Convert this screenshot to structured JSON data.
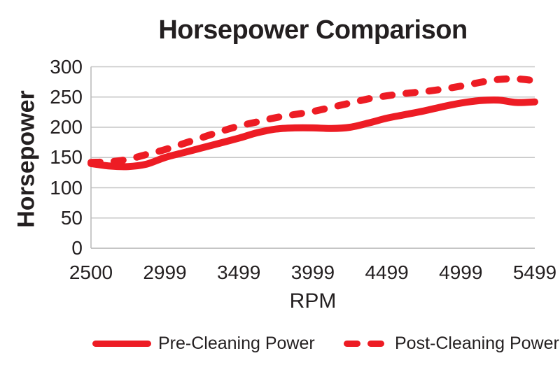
{
  "chart_data": {
    "type": "line",
    "title": "Horsepower Comparison",
    "xlabel": "RPM",
    "ylabel": "Horsepower",
    "xlim": [
      2500,
      5499
    ],
    "ylim": [
      0,
      300
    ],
    "grid": "horizontal",
    "legend_position": "bottom",
    "colors": {
      "series": "#ED1C24",
      "grid": "#C6C6C6",
      "axis": "#BDBDBD",
      "text": "#231F20"
    },
    "y_ticks": [
      0,
      50,
      100,
      150,
      200,
      250,
      300
    ],
    "x_tick_labels": [
      "2500",
      "2999",
      "3499",
      "3999",
      "4499",
      "4999",
      "5499"
    ],
    "x_tick_values": [
      2500,
      2999,
      3499,
      3999,
      4499,
      4999,
      5499
    ],
    "x": [
      2500,
      2625,
      2750,
      2875,
      2999,
      3125,
      3250,
      3375,
      3499,
      3625,
      3750,
      3875,
      3999,
      4125,
      4250,
      4375,
      4499,
      4625,
      4750,
      4875,
      4999,
      5125,
      5250,
      5375,
      5499
    ],
    "series": [
      {
        "name": "Pre-Cleaning Power",
        "style": "solid",
        "values": [
          140,
          136,
          135,
          139,
          150,
          158,
          166,
          174,
          182,
          191,
          197,
          199,
          199,
          198,
          200,
          207,
          215,
          221,
          227,
          234,
          240,
          244,
          245,
          241,
          242
        ]
      },
      {
        "name": "Post-Cleaning Power",
        "style": "dashed",
        "values": [
          142,
          143,
          147,
          155,
          163,
          173,
          183,
          193,
          202,
          209,
          216,
          221,
          226,
          233,
          240,
          247,
          252,
          256,
          259,
          263,
          268,
          274,
          279,
          280,
          277
        ]
      }
    ]
  }
}
